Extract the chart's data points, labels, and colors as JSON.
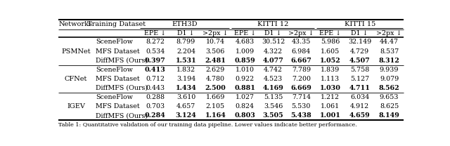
{
  "networks": [
    "PSMNet",
    "CFNet",
    "IGEV"
  ],
  "datasets": [
    "SceneFlow",
    "MFS Dataset",
    "DiffMFS (Ours)"
  ],
  "data": {
    "PSMNet": {
      "SceneFlow": [
        "8.272",
        "8.799",
        "10.74",
        "4.683",
        "30.512",
        "43.35",
        "5.986",
        "32.149",
        "44.47"
      ],
      "MFS Dataset": [
        "0.534",
        "2.204",
        "3.506",
        "1.009",
        "4.322",
        "6.984",
        "1.605",
        "4.729",
        "8.537"
      ],
      "DiffMFS (Ours)": [
        "0.397",
        "1.531",
        "2.481",
        "0.859",
        "4.077",
        "6.667",
        "1.052",
        "4.507",
        "8.312"
      ]
    },
    "CFNet": {
      "SceneFlow": [
        "0.413",
        "1.832",
        "2.629",
        "1.010",
        "4.742",
        "7.789",
        "1.839",
        "5.758",
        "9.939"
      ],
      "MFS Dataset": [
        "0.712",
        "3.194",
        "4.780",
        "0.922",
        "4.523",
        "7.200",
        "1.113",
        "5.127",
        "9.079"
      ],
      "DiffMFS (Ours)": [
        "0.443",
        "1.434",
        "2.500",
        "0.881",
        "4.169",
        "6.669",
        "1.030",
        "4.711",
        "8.562"
      ]
    },
    "IGEV": {
      "SceneFlow": [
        "0.288",
        "3.610",
        "1.669",
        "1.027",
        "5.135",
        "7.714",
        "1.212",
        "6.034",
        "9.653"
      ],
      "MFS Dataset": [
        "0.703",
        "4.657",
        "2.105",
        "0.824",
        "3.546",
        "5.530",
        "1.061",
        "4.912",
        "8.625"
      ],
      "DiffMFS (Ours)": [
        "0.284",
        "3.124",
        "1.164",
        "0.803",
        "3.505",
        "5.438",
        "1.001",
        "4.659",
        "8.149"
      ]
    }
  },
  "bold": {
    "PSMNet": {
      "SceneFlow": [
        false,
        false,
        false,
        false,
        false,
        false,
        false,
        false,
        false
      ],
      "MFS Dataset": [
        false,
        false,
        false,
        false,
        false,
        false,
        false,
        false,
        false
      ],
      "DiffMFS (Ours)": [
        true,
        true,
        true,
        true,
        true,
        true,
        true,
        true,
        true
      ]
    },
    "CFNet": {
      "SceneFlow": [
        true,
        false,
        false,
        false,
        false,
        false,
        false,
        false,
        false
      ],
      "MFS Dataset": [
        false,
        false,
        false,
        false,
        false,
        false,
        false,
        false,
        false
      ],
      "DiffMFS (Ours)": [
        false,
        true,
        true,
        true,
        true,
        true,
        true,
        true,
        true
      ]
    },
    "IGEV": {
      "SceneFlow": [
        false,
        false,
        false,
        false,
        false,
        false,
        false,
        false,
        false
      ],
      "MFS Dataset": [
        false,
        false,
        false,
        false,
        false,
        false,
        false,
        false,
        false
      ],
      "DiffMFS (Ours)": [
        true,
        true,
        true,
        true,
        true,
        true,
        true,
        true,
        true
      ]
    }
  },
  "caption": "Table 1: Quantitative validation of our training data pipeline. Lower values indicate better performance.",
  "col_group_names": [
    "ETH3D",
    "KITTI 12",
    "KITTI 15"
  ],
  "sub_headers": [
    "EPE ↓",
    "D1 ↓",
    ">2px ↓"
  ],
  "header_fontsize": 7.0,
  "cell_fontsize": 6.8,
  "caption_fontsize": 5.8
}
